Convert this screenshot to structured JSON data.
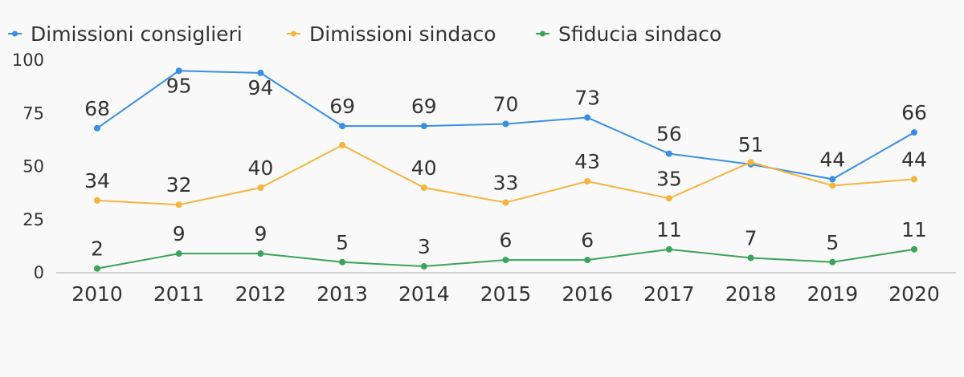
{
  "chart_data": {
    "type": "line",
    "title": "",
    "xlabel": "",
    "ylabel": "",
    "categories": [
      "2010",
      "2011",
      "2012",
      "2013",
      "2014",
      "2015",
      "2016",
      "2017",
      "2018",
      "2019",
      "2020"
    ],
    "ylim": [
      0,
      100
    ],
    "yticks": [
      0,
      25,
      50,
      75,
      100
    ],
    "grid": false,
    "legend_position": "top-left",
    "series": [
      {
        "name": "Dimissioni consiglieri",
        "color": "#3a8ee6",
        "values": [
          68,
          95,
          94,
          69,
          69,
          70,
          73,
          56,
          51,
          44,
          66
        ]
      },
      {
        "name": "Dimissioni sindaco",
        "color": "#f7b43c",
        "values": [
          34,
          32,
          40,
          60,
          40,
          33,
          43,
          35,
          52,
          41,
          44
        ]
      },
      {
        "name": "Sfiducia sindaco",
        "color": "#3ba35a",
        "values": [
          2,
          9,
          9,
          5,
          3,
          6,
          6,
          11,
          7,
          5,
          11
        ]
      }
    ],
    "data_labels": [
      [
        "68",
        "95",
        "94",
        "69",
        "69",
        "70",
        "73",
        "56",
        "51",
        "44",
        "66"
      ],
      [
        "34",
        "32",
        "40",
        null,
        "40",
        "33",
        "43",
        "35",
        null,
        null,
        "44"
      ],
      [
        "2",
        "9",
        "9",
        "5",
        "3",
        "6",
        "6",
        "11",
        "7",
        "5",
        "11"
      ]
    ]
  }
}
